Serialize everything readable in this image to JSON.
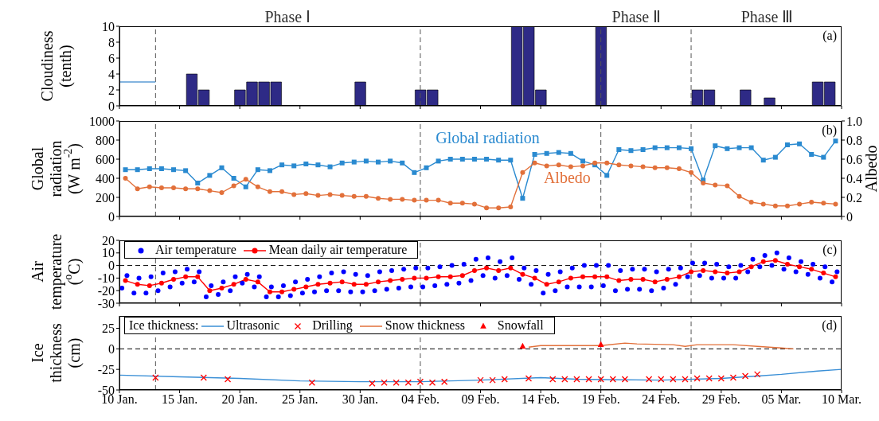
{
  "chart_data": [
    {
      "type": "bar",
      "ylabel": "Cloudiness\n(tenth)",
      "xlim": [
        "--01-10",
        "--03-10"
      ],
      "xticks": [
        {
          "value": "--01-10",
          "label": "10 Jan."
        },
        {
          "value": "--01-15",
          "label": "15 Jan."
        },
        {
          "value": "--01-20",
          "label": "20 Jan."
        },
        {
          "value": "--01-25",
          "label": "25 Jan."
        },
        {
          "value": "--01-30",
          "label": "30 Jan."
        },
        {
          "value": "--02-04",
          "label": "04 Feb."
        },
        {
          "value": "--02-09",
          "label": "09 Feb."
        },
        {
          "value": "--02-14",
          "label": "14 Feb."
        },
        {
          "value": "--02-19",
          "label": "19 Feb."
        },
        {
          "value": "--02-24",
          "label": "24 Feb."
        },
        {
          "value": "--02-29",
          "label": "29 Feb."
        },
        {
          "value": "--03-05",
          "label": "05 Mar."
        },
        {
          "value": "--03-10",
          "label": "10 Mar."
        }
      ],
      "ylim": [
        0,
        10
      ],
      "yticks": [
        0,
        2,
        4,
        6,
        8,
        10
      ],
      "tick_labels": "y",
      "series": [
        {
          "color": "#2e2a86",
          "x": [
            "--01-16",
            "--01-17",
            "--01-20",
            "--01-21",
            "--01-22",
            "--01-23",
            "--01-30",
            "--02-04",
            "--02-05",
            "--02-12",
            "--02-13",
            "--02-14",
            "--02-19",
            "--02-27",
            "--02-28",
            "--03-02",
            "--03-04",
            "--03-08",
            "--03-09"
          ],
          "values": [
            4,
            2,
            2,
            3,
            3,
            3,
            3,
            2,
            2,
            10,
            10,
            2,
            10,
            2,
            2,
            2,
            1,
            3,
            3
          ]
        },
        {
          "type": "line",
          "color": "#5b9bd5",
          "x": [
            "--01-10",
            "--01-13"
          ],
          "values": [
            3,
            3
          ]
        }
      ],
      "ref_lines": [
        {
          "axis": "x",
          "value": "--01-13",
          "color": "#555555",
          "line_style": "dashed"
        },
        {
          "axis": "x",
          "value": "--02-04",
          "color": "#555555",
          "line_style": "dashed"
        },
        {
          "axis": "x",
          "value": "--02-19",
          "color": "#555555",
          "line_style": "dashed"
        },
        {
          "axis": "x",
          "value": "--02-26T12:00",
          "color": "#555555",
          "line_style": "dashed"
        }
      ],
      "annotations": [
        "(a)",
        "Phase Ⅰ",
        "Phase Ⅱ",
        "Phase Ⅲ"
      ]
    },
    {
      "type": "line",
      "ylabel": "Global\nradiation\n(W m$^{-2}$)",
      "y2label": "Albedo",
      "legend": false,
      "xlim": [
        "--01-10",
        "--03-10"
      ],
      "xticks": [
        {
          "value": "--01-10",
          "label": "10 Jan."
        },
        {
          "value": "--01-15",
          "label": "15 Jan."
        },
        {
          "value": "--01-20",
          "label": "20 Jan."
        },
        {
          "value": "--01-25",
          "label": "25 Jan."
        },
        {
          "value": "--01-30",
          "label": "30 Jan."
        },
        {
          "value": "--02-04",
          "label": "04 Feb."
        },
        {
          "value": "--02-09",
          "label": "09 Feb."
        },
        {
          "value": "--02-14",
          "label": "14 Feb."
        },
        {
          "value": "--02-19",
          "label": "19 Feb."
        },
        {
          "value": "--02-24",
          "label": "24 Feb."
        },
        {
          "value": "--02-29",
          "label": "29 Feb."
        },
        {
          "value": "--03-05",
          "label": "05 Mar."
        },
        {
          "value": "--03-10",
          "label": "10 Mar."
        }
      ],
      "ylim": [
        0,
        1000
      ],
      "yticks": [
        0,
        200,
        400,
        600,
        800,
        1000
      ],
      "y2lim": [
        0,
        1
      ],
      "y2ticks": [
        0,
        0.2,
        0.4,
        0.6,
        0.8,
        {
          "value": 1,
          "label": "1.0"
        }
      ],
      "tick_labels": "y",
      "x": [
        "--01-10T12:00",
        "--01-11T12:00",
        "--01-12T12:00",
        "--01-13T12:00",
        "--01-14T12:00",
        "--01-15T12:00",
        "--01-16T12:00",
        "--01-17T12:00",
        "--01-18T12:00",
        "--01-19T12:00",
        "--01-20T12:00",
        "--01-21T12:00",
        "--01-22T12:00",
        "--01-23T12:00",
        "--01-24T12:00",
        "--01-25T12:00",
        "--01-26T12:00",
        "--01-27T12:00",
        "--01-28T12:00",
        "--01-29T12:00",
        "--01-30T12:00",
        "--01-31T12:00",
        "--02-01T12:00",
        "--02-02T12:00",
        "--02-03T12:00",
        "--02-04T12:00",
        "--02-05T12:00",
        "--02-06T12:00",
        "--02-07T12:00",
        "--02-08T12:00",
        "--02-09T12:00",
        "--02-10T12:00",
        "--02-11T12:00",
        "--02-12T12:00",
        "--02-13T12:00",
        "--02-14T12:00",
        "--02-15T12:00",
        "--02-16T12:00",
        "--02-17T12:00",
        "--02-18T12:00",
        "--02-19T12:00",
        "--02-20T12:00",
        "--02-21T12:00",
        "--02-22T12:00",
        "--02-23T12:00",
        "--02-24T12:00",
        "--02-25T12:00",
        "--02-26T12:00",
        "--02-27T12:00",
        "--02-28T12:00",
        "--02-29T12:00",
        "--03-01T12:00",
        "--03-02T12:00",
        "--03-03T12:00",
        "--03-04T12:00",
        "--03-05T12:00",
        "--03-06T12:00",
        "--03-07T12:00",
        "--03-08T12:00",
        "--03-09T12:00"
      ],
      "series": [
        {
          "name": "Global radiation",
          "color": "#2a8ad0",
          "marker": "square",
          "values": [
            490,
            490,
            500,
            500,
            490,
            480,
            350,
            430,
            510,
            400,
            310,
            490,
            480,
            540,
            530,
            550,
            540,
            520,
            560,
            570,
            580,
            570,
            580,
            560,
            460,
            510,
            580,
            600,
            600,
            600,
            600,
            590,
            590,
            190,
            650,
            660,
            670,
            660,
            580,
            540,
            430,
            700,
            690,
            700,
            720,
            720,
            720,
            710,
            380,
            740,
            710,
            720,
            720,
            590,
            620,
            750,
            760,
            650,
            620,
            790
          ]
        },
        {
          "name": "Albedo",
          "color": "#e2703a",
          "marker": "circle",
          "axis": "y2",
          "values": [
            0.4,
            0.29,
            0.31,
            0.3,
            0.3,
            0.29,
            0.29,
            0.27,
            0.25,
            0.32,
            0.39,
            0.31,
            0.26,
            0.26,
            0.23,
            0.24,
            0.22,
            0.23,
            0.22,
            0.21,
            0.21,
            0.19,
            0.18,
            0.18,
            0.17,
            0.17,
            0.17,
            0.14,
            0.14,
            0.13,
            0.09,
            0.09,
            0.1,
            0.46,
            0.56,
            0.53,
            0.54,
            0.52,
            0.53,
            0.56,
            0.56,
            0.54,
            0.53,
            0.52,
            0.51,
            0.51,
            0.5,
            0.46,
            0.35,
            0.33,
            0.32,
            0.21,
            0.15,
            0.13,
            0.11,
            0.11,
            0.13,
            0.15,
            0.14,
            0.13
          ]
        }
      ],
      "ref_lines": [
        {
          "axis": "x",
          "value": "--01-13",
          "color": "#555555",
          "line_style": "dashed"
        },
        {
          "axis": "x",
          "value": "--02-04",
          "color": "#555555",
          "line_style": "dashed"
        },
        {
          "axis": "x",
          "value": "--02-19",
          "color": "#555555",
          "line_style": "dashed"
        },
        {
          "axis": "x",
          "value": "--02-26T12:00",
          "color": "#555555",
          "line_style": "dashed"
        }
      ],
      "annotations": [
        "(b)"
      ]
    },
    {
      "type": "line",
      "ylabel": "Air\ntemperature\n($^{o}$C)",
      "legend": "top left",
      "xlim": [
        "--01-10",
        "--03-10"
      ],
      "xticks": [
        {
          "value": "--01-10",
          "label": "10 Jan."
        },
        {
          "value": "--01-15",
          "label": "15 Jan."
        },
        {
          "value": "--01-20",
          "label": "20 Jan."
        },
        {
          "value": "--01-25",
          "label": "25 Jan."
        },
        {
          "value": "--01-30",
          "label": "30 Jan."
        },
        {
          "value": "--02-04",
          "label": "04 Feb."
        },
        {
          "value": "--02-09",
          "label": "09 Feb."
        },
        {
          "value": "--02-14",
          "label": "14 Feb."
        },
        {
          "value": "--02-19",
          "label": "19 Feb."
        },
        {
          "value": "--02-24",
          "label": "24 Feb."
        },
        {
          "value": "--02-29",
          "label": "29 Feb."
        },
        {
          "value": "--03-05",
          "label": "05 Mar."
        },
        {
          "value": "--03-10",
          "label": "10 Mar."
        }
      ],
      "ylim": [
        -30,
        20
      ],
      "yticks": [
        -30,
        -20,
        -10,
        0,
        10,
        20
      ],
      "tick_labels": "y",
      "series": [
        {
          "type": "scatter",
          "name": "Air temperature",
          "color": "#0000ff",
          "marker": "circle",
          "x": [
            "--01-10T05:00",
            "--01-10T15:00",
            "--01-11T05:00",
            "--01-11T15:00",
            "--01-12T05:00",
            "--01-12T15:00",
            "--01-13T05:00",
            "--01-13T15:00",
            "--01-14T05:00",
            "--01-14T15:00",
            "--01-15T05:00",
            "--01-15T15:00",
            "--01-16T05:00",
            "--01-16T15:00",
            "--01-17T05:00",
            "--01-17T15:00",
            "--01-18T05:00",
            "--01-18T15:00",
            "--01-19T05:00",
            "--01-19T15:00",
            "--01-20T05:00",
            "--01-20T15:00",
            "--01-21T05:00",
            "--01-21T15:00",
            "--01-22T05:00",
            "--01-22T15:00",
            "--01-23T05:00",
            "--01-23T15:00",
            "--01-24T05:00",
            "--01-24T15:00",
            "--01-25T05:00",
            "--01-25T15:00",
            "--01-26T05:00",
            "--01-26T15:00",
            "--01-27T05:00",
            "--01-27T15:00",
            "--01-28T05:00",
            "--01-28T15:00",
            "--01-29T05:00",
            "--01-29T15:00",
            "--01-30T05:00",
            "--01-30T15:00",
            "--01-31T05:00",
            "--01-31T15:00",
            "--02-01T05:00",
            "--02-01T15:00",
            "--02-02T05:00",
            "--02-02T15:00",
            "--02-03T05:00",
            "--02-03T15:00",
            "--02-04T05:00",
            "--02-04T15:00",
            "--02-05T05:00",
            "--02-05T15:00",
            "--02-06T05:00",
            "--02-06T15:00",
            "--02-07T05:00",
            "--02-07T15:00",
            "--02-08T05:00",
            "--02-08T15:00",
            "--02-09T05:00",
            "--02-09T15:00",
            "--02-10T05:00",
            "--02-10T15:00",
            "--02-11T05:00",
            "--02-11T15:00",
            "--02-12T05:00",
            "--02-12T15:00",
            "--02-13T05:00",
            "--02-13T15:00",
            "--02-14T05:00",
            "--02-14T15:00",
            "--02-15T05:00",
            "--02-15T15:00",
            "--02-16T05:00",
            "--02-16T15:00",
            "--02-17T05:00",
            "--02-17T15:00",
            "--02-18T05:00",
            "--02-18T15:00",
            "--02-19T05:00",
            "--02-19T15:00",
            "--02-20T05:00",
            "--02-20T15:00",
            "--02-21T05:00",
            "--02-21T15:00",
            "--02-22T05:00",
            "--02-22T15:00",
            "--02-23T05:00",
            "--02-23T15:00",
            "--02-24T05:00",
            "--02-24T15:00",
            "--02-25T05:00",
            "--02-25T15:00",
            "--02-26T05:00",
            "--02-26T15:00",
            "--02-27T05:00",
            "--02-27T15:00",
            "--02-28T05:00",
            "--02-28T15:00",
            "--02-29T05:00",
            "--02-29T15:00",
            "--03-01T05:00",
            "--03-01T15:00",
            "--03-02T05:00",
            "--03-02T15:00",
            "--03-03T05:00",
            "--03-03T15:00",
            "--03-04T05:00",
            "--03-04T15:00",
            "--03-05T05:00",
            "--03-05T15:00",
            "--03-06T05:00",
            "--03-06T15:00",
            "--03-07T05:00",
            "--03-07T15:00",
            "--03-08T05:00",
            "--03-08T15:00",
            "--03-09T05:00",
            "--03-09T15:00"
          ],
          "values": [
            -18,
            -8,
            -22,
            -10,
            -22,
            -9,
            -20,
            -6,
            -17,
            -5,
            -14,
            -3,
            -13,
            -5,
            -25,
            -16,
            -23,
            -13,
            -20,
            -9,
            -14,
            -7,
            -17,
            -9,
            -25,
            -17,
            -25,
            -16,
            -24,
            -13,
            -22,
            -11,
            -21,
            -9,
            -20,
            -6,
            -20,
            -5,
            -21,
            -7,
            -21,
            -8,
            -20,
            -5,
            -19,
            -4,
            -18,
            -3,
            -17,
            -2,
            -17,
            -2,
            -16,
            -1,
            -15,
            0,
            -14,
            1,
            -12,
            5,
            -8,
            6,
            -10,
            3,
            -8,
            6,
            -11,
            -2,
            -15,
            -4,
            -22,
            -7,
            -20,
            -5,
            -17,
            -2,
            -17,
            0,
            -17,
            0,
            -16,
            0,
            -20,
            -4,
            -19,
            -3,
            -19,
            -3,
            -20,
            -5,
            -18,
            -3,
            -15,
            -2,
            -9,
            2,
            -8,
            2,
            -10,
            1,
            -10,
            -1,
            -10,
            0,
            -5,
            5,
            -1,
            8,
            0,
            10,
            -3,
            6,
            -5,
            3,
            -7,
            1,
            -10,
            -1,
            -13,
            -5
          ]
        },
        {
          "name": "Mean daily air temperature",
          "color": "#ff0000",
          "marker": "circle",
          "x": [
            "--01-10T12:00",
            "--01-11T12:00",
            "--01-12T12:00",
            "--01-13T12:00",
            "--01-14T12:00",
            "--01-15T12:00",
            "--01-16T12:00",
            "--01-17T12:00",
            "--01-18T12:00",
            "--01-19T12:00",
            "--01-20T12:00",
            "--01-21T12:00",
            "--01-22T12:00",
            "--01-23T12:00",
            "--01-24T12:00",
            "--01-25T12:00",
            "--01-26T12:00",
            "--01-27T12:00",
            "--01-28T12:00",
            "--01-29T12:00",
            "--01-30T12:00",
            "--01-31T12:00",
            "--02-01T12:00",
            "--02-02T12:00",
            "--02-03T12:00",
            "--02-04T12:00",
            "--02-05T12:00",
            "--02-06T12:00",
            "--02-07T12:00",
            "--02-08T12:00",
            "--02-09T12:00",
            "--02-10T12:00",
            "--02-11T12:00",
            "--02-12T12:00",
            "--02-13T12:00",
            "--02-14T12:00",
            "--02-15T12:00",
            "--02-16T12:00",
            "--02-17T12:00",
            "--02-18T12:00",
            "--02-19T12:00",
            "--02-20T12:00",
            "--02-21T12:00",
            "--02-22T12:00",
            "--02-23T12:00",
            "--02-24T12:00",
            "--02-25T12:00",
            "--02-26T12:00",
            "--02-27T12:00",
            "--02-28T12:00",
            "--02-29T12:00",
            "--03-01T12:00",
            "--03-02T12:00",
            "--03-03T12:00",
            "--03-04T12:00",
            "--03-05T12:00",
            "--03-06T12:00",
            "--03-07T12:00",
            "--03-08T12:00",
            "--03-09T12:00"
          ],
          "values": [
            -12,
            -15,
            -16,
            -14,
            -11,
            -9,
            -9,
            -20,
            -18,
            -15,
            -11,
            -13,
            -21,
            -21,
            -19,
            -17,
            -15,
            -14,
            -13,
            -15,
            -15,
            -13,
            -12,
            -11,
            -10,
            -10,
            -9,
            -9,
            -8,
            -4,
            -2,
            -4,
            -2,
            -7,
            -10,
            -15,
            -13,
            -10,
            -9,
            -9,
            -9,
            -12,
            -11,
            -11,
            -13,
            -11,
            -9,
            -5,
            -4,
            -5,
            -6,
            -5,
            -1,
            3,
            4,
            1,
            -1,
            -3,
            -6,
            -9
          ]
        }
      ],
      "ref_lines": [
        {
          "axis": "y",
          "value": 0,
          "color": "#000000",
          "line_style": "dashed"
        },
        {
          "axis": "x",
          "value": "--01-13",
          "color": "#555555",
          "line_style": "dashed"
        },
        {
          "axis": "x",
          "value": "--02-04",
          "color": "#555555",
          "line_style": "dashed"
        },
        {
          "axis": "x",
          "value": "--02-19",
          "color": "#555555",
          "line_style": "dashed"
        },
        {
          "axis": "x",
          "value": "--02-26T12:00",
          "color": "#555555",
          "line_style": "dashed"
        }
      ],
      "annotations": [
        "(c)"
      ]
    },
    {
      "type": "line",
      "ylabel": "Ice\nthickness\n(cm)",
      "legend": "top left",
      "legend_title": "Ice thickness:",
      "xlim": [
        "--01-10",
        "--03-10"
      ],
      "xticks": [
        {
          "value": "--01-10",
          "label": "10 Jan."
        },
        {
          "value": "--01-15",
          "label": "15 Jan."
        },
        {
          "value": "--01-20",
          "label": "20 Jan."
        },
        {
          "value": "--01-25",
          "label": "25 Jan."
        },
        {
          "value": "--01-30",
          "label": "30 Jan."
        },
        {
          "value": "--02-04",
          "label": "04 Feb."
        },
        {
          "value": "--02-09",
          "label": "09 Feb."
        },
        {
          "value": "--02-14",
          "label": "14 Feb."
        },
        {
          "value": "--02-19",
          "label": "19 Feb."
        },
        {
          "value": "--02-24",
          "label": "24 Feb."
        },
        {
          "value": "--02-29",
          "label": "29 Feb."
        },
        {
          "value": "--03-05",
          "label": "05 Mar."
        },
        {
          "value": "--03-10",
          "label": "10 Mar."
        }
      ],
      "ylim": [
        -50,
        40
      ],
      "yticks": [
        -50,
        -25,
        0,
        25
      ],
      "series": [
        {
          "name": "Ultrasonic",
          "color": "#3a8fd6",
          "x": [
            "--01-10",
            "--01-15",
            "--01-20",
            "--01-25",
            "--01-30",
            "--02-04",
            "--02-09",
            "--02-14",
            "--02-17",
            "--02-24",
            "--02-29",
            "--03-03",
            "--03-05",
            "--03-08",
            "--03-10"
          ],
          "values": [
            -32,
            -34,
            -36,
            -39,
            -40,
            -40,
            -38,
            -35,
            -37,
            -38,
            -36,
            -33,
            -31,
            -27,
            -25
          ]
        },
        {
          "type": "scatter",
          "name": "Drilling",
          "color": "#ff0000",
          "marker": "cross",
          "x": [
            "--01-13",
            "--01-17",
            "--01-19",
            "--01-26",
            "--01-31",
            "--02-01",
            "--02-02",
            "--02-03",
            "--02-04",
            "--02-05",
            "--02-06",
            "--02-09",
            "--02-10",
            "--02-11",
            "--02-13",
            "--02-15",
            "--02-16",
            "--02-17",
            "--02-18",
            "--02-19",
            "--02-20",
            "--02-21",
            "--02-23",
            "--02-24",
            "--02-25",
            "--02-26",
            "--02-27",
            "--02-28",
            "--02-29",
            "--03-01",
            "--03-02",
            "--03-03"
          ],
          "values": [
            -35,
            -35,
            -37,
            -41,
            -42,
            -41,
            -41,
            -41,
            -40,
            -41,
            -40,
            -38,
            -38,
            -37,
            -36,
            -37,
            -37,
            -37,
            -37,
            -37,
            -37,
            -37,
            -37,
            -37,
            -37,
            -37,
            -36,
            -36,
            -36,
            -35,
            -33,
            -31
          ]
        },
        {
          "name": "Snow thickness",
          "color": "#e2703a",
          "x": [
            "--02-13",
            "--02-14",
            "--02-19",
            "--02-21",
            "--02-22",
            "--02-25",
            "--02-26",
            "--02-27",
            "--03-01",
            "--03-03",
            "--03-05",
            "--03-06"
          ],
          "values": [
            2,
            4,
            4,
            7,
            6,
            5,
            3,
            5,
            5,
            3,
            1,
            0
          ]
        },
        {
          "type": "scatter",
          "name": "Snowfall",
          "color": "#ff0000",
          "marker": "triangle",
          "x": [
            "--02-12T12:00",
            "--02-19"
          ],
          "values": [
            3,
            5
          ]
        }
      ],
      "ref_lines": [
        {
          "axis": "y",
          "value": 0,
          "color": "#000000",
          "line_style": "dashed"
        },
        {
          "axis": "x",
          "value": "--01-13",
          "color": "#555555",
          "line_style": "dashed"
        },
        {
          "axis": "x",
          "value": "--02-04",
          "color": "#555555",
          "line_style": "dashed"
        },
        {
          "axis": "x",
          "value": "--02-19",
          "color": "#555555",
          "line_style": "dashed"
        },
        {
          "axis": "x",
          "value": "--02-26T12:00",
          "color": "#555555",
          "line_style": "dashed"
        }
      ],
      "annotations": [
        "(d)"
      ]
    }
  ]
}
